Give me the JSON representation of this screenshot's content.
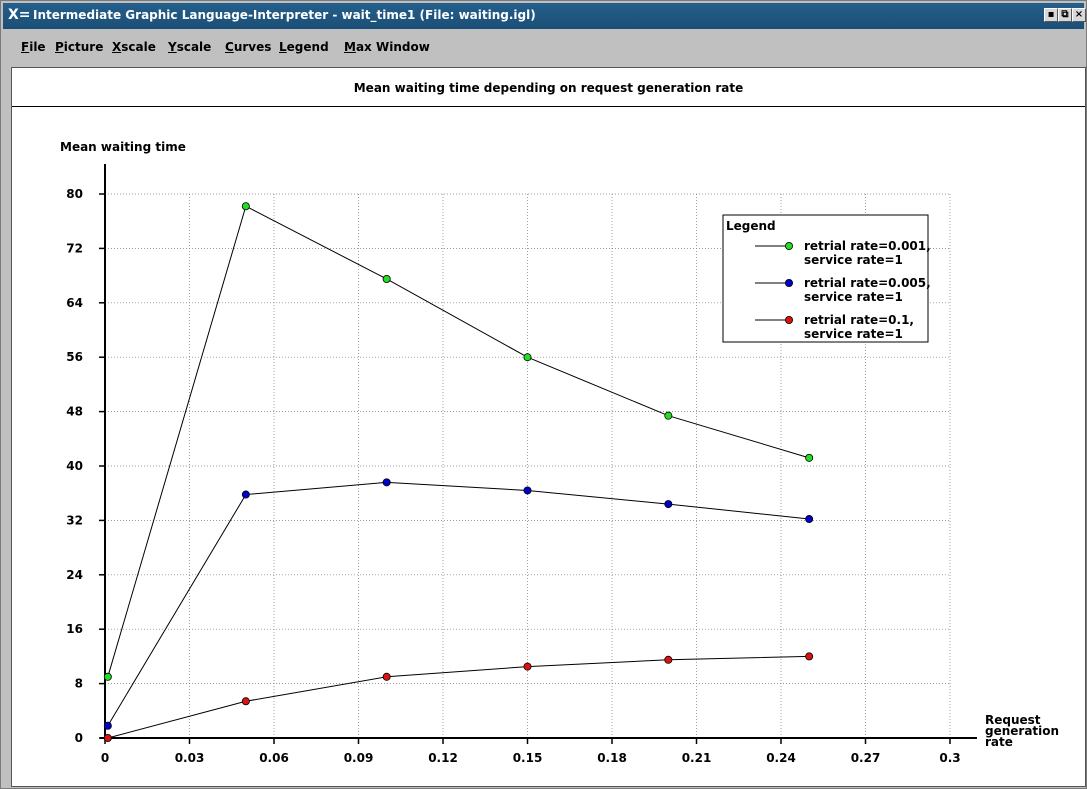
{
  "window": {
    "title": "Intermediate Graphic Language-Interpreter - wait_time1 (File: waiting.igl)",
    "logo": "X=",
    "controls": [
      "minimize-icon",
      "restore-icon",
      "close-icon"
    ]
  },
  "menu": {
    "items": [
      {
        "label": "File",
        "underline": "F"
      },
      {
        "label": "Picture",
        "underline": "P"
      },
      {
        "label": "Xscale",
        "underline": "X"
      },
      {
        "label": "Yscale",
        "underline": "Y"
      },
      {
        "label": "Curves",
        "underline": "C"
      },
      {
        "label": "Legend",
        "underline": "L"
      },
      {
        "label": "Max Window",
        "underline": "M"
      }
    ]
  },
  "chart_data": {
    "type": "line",
    "title": "Mean waiting time depending on request generation rate",
    "ylabel": "Mean waiting time",
    "xlabel_lines": [
      "Request",
      "generation",
      "rate"
    ],
    "xlim": [
      0,
      0.3
    ],
    "ylim": [
      0,
      80
    ],
    "x_ticks": [
      "0",
      "0.03",
      "0.06",
      "0.09",
      "0.12",
      "0.15",
      "0.18",
      "0.21",
      "0.24",
      "0.27",
      "0.3"
    ],
    "y_ticks": [
      "0",
      "8",
      "16",
      "24",
      "32",
      "40",
      "48",
      "56",
      "64",
      "72",
      "80"
    ],
    "grid": true,
    "legend_title": "Legend",
    "legend_position": "top-right",
    "x": [
      0.001,
      0.05,
      0.1,
      0.15,
      0.2,
      0.25
    ],
    "series": [
      {
        "name": [
          "retrial rate=0.001,",
          "service rate=1"
        ],
        "color": "#22dd22",
        "values": [
          9.0,
          78.2,
          67.5,
          56.0,
          47.4,
          41.2
        ]
      },
      {
        "name": [
          "retrial rate=0.005,",
          "service rate=1"
        ],
        "color": "#0000cc",
        "values": [
          1.8,
          35.8,
          37.6,
          36.4,
          34.4,
          32.2
        ]
      },
      {
        "name": [
          "retrial rate=0.1,",
          "service rate=1"
        ],
        "color": "#dd1111",
        "values": [
          0.0,
          5.4,
          9.0,
          10.5,
          11.5,
          12.0
        ]
      }
    ]
  }
}
